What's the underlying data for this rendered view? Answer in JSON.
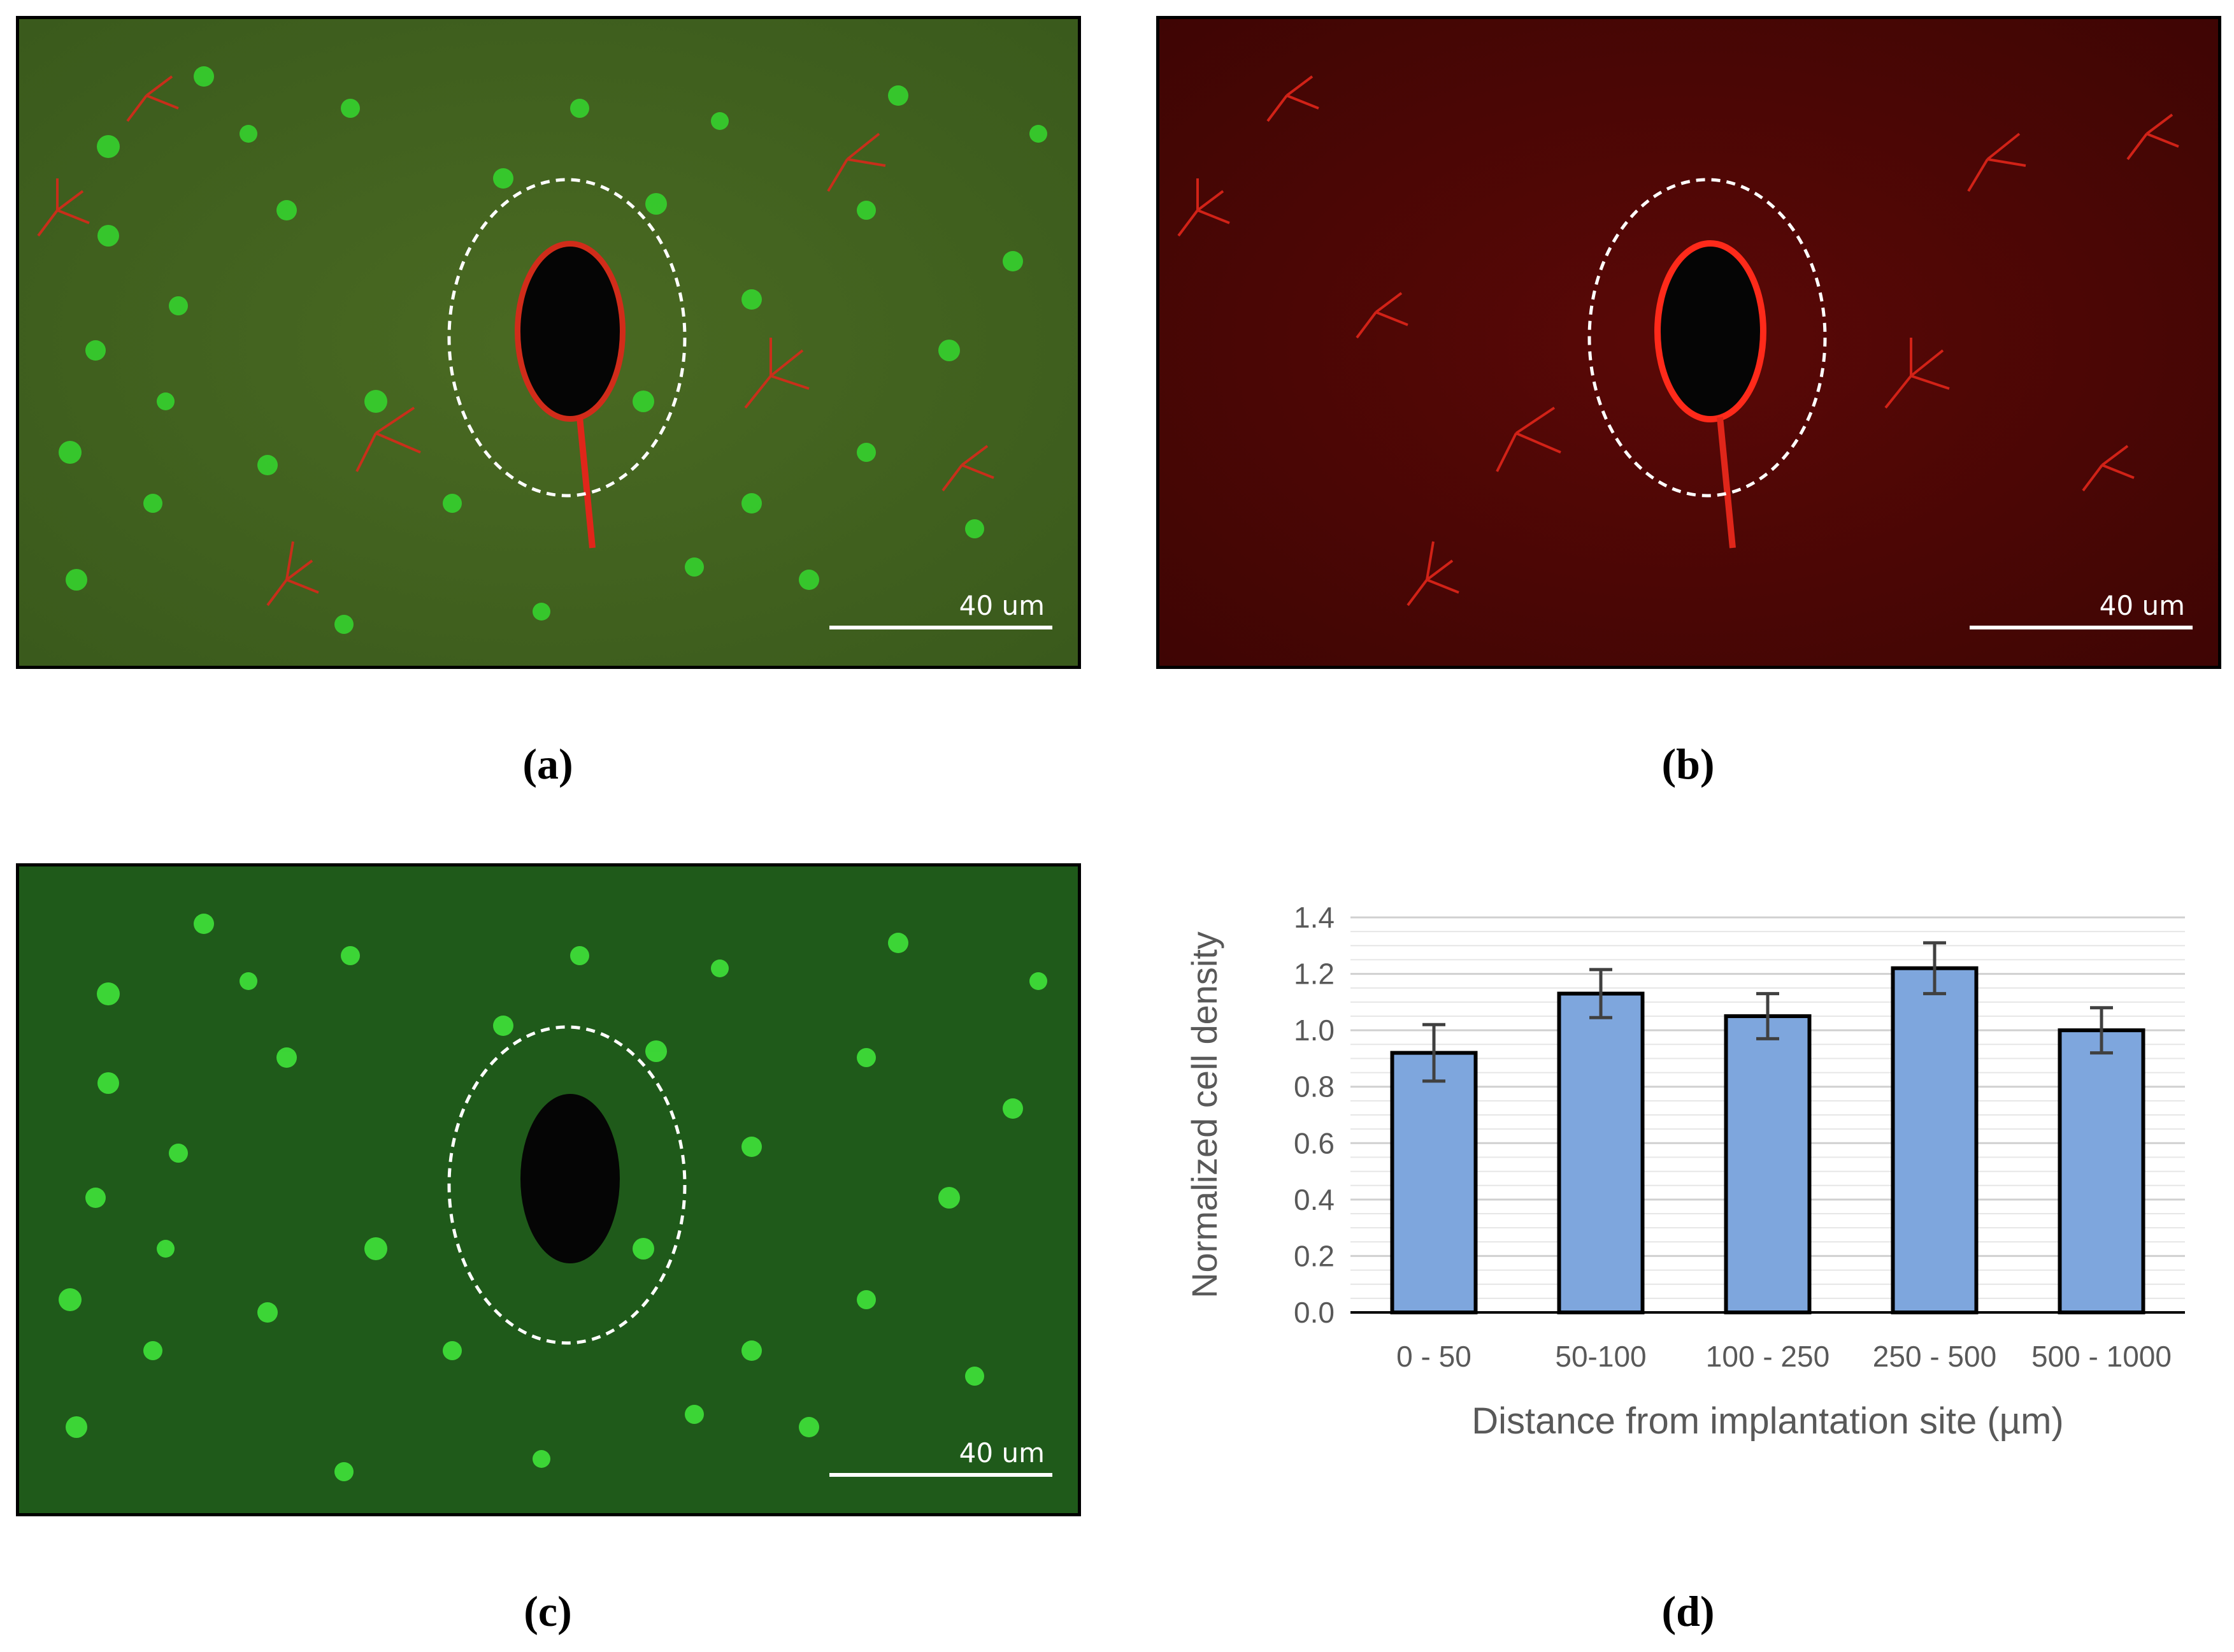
{
  "panels": {
    "a": {
      "caption": "(a)",
      "scale_text": "40 um",
      "channels": "merged red and green"
    },
    "b": {
      "caption": "(b)",
      "scale_text": "40 um",
      "channels": "red"
    },
    "c": {
      "caption": "(c)",
      "scale_text": "40 um",
      "channels": "green"
    },
    "d": {
      "caption": "(d)"
    }
  },
  "colors": {
    "bar_fill": "#7ea6dd",
    "error_bar": "#404040",
    "axis_text": "#595959",
    "red": "#e0261a",
    "green": "#2fd12b"
  },
  "chart_data": {
    "type": "bar",
    "title": "",
    "xlabel": "Distance from implantation site (µm)",
    "ylabel": "Normalized cell density",
    "categories": [
      "0 - 50",
      "50-100",
      "100 - 250",
      "250 - 500",
      "500 - 1000"
    ],
    "values": [
      0.92,
      1.13,
      1.05,
      1.22,
      1.0
    ],
    "errors": [
      0.1,
      0.085,
      0.08,
      0.09,
      0.08
    ],
    "ylim": [
      0,
      1.4
    ],
    "yticks": [
      "0.0",
      "0.2",
      "0.4",
      "0.6",
      "0.8",
      "1.0",
      "1.2",
      "1.4"
    ],
    "grid": true
  }
}
